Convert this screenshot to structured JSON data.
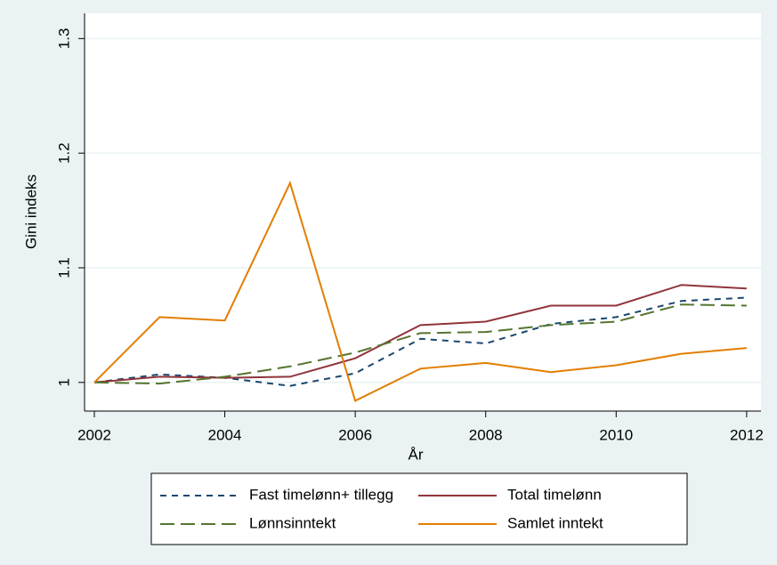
{
  "chart_data": {
    "type": "line",
    "x_label": "År",
    "y_label": "Gini indeks",
    "x": [
      2002,
      2003,
      2004,
      2005,
      2006,
      2007,
      2008,
      2009,
      2010,
      2011,
      2012
    ],
    "series": [
      {
        "name": "Fast timelønn+ tillegg",
        "color": "#1a476f",
        "line_style": "dashed",
        "values": [
          1.0,
          1.007,
          1.004,
          0.997,
          1.008,
          1.038,
          1.034,
          1.051,
          1.057,
          1.071,
          1.074
        ]
      },
      {
        "name": "Total timelønn",
        "color": "#90353b",
        "line_style": "solid",
        "values": [
          1.0,
          1.005,
          1.004,
          1.005,
          1.021,
          1.05,
          1.053,
          1.067,
          1.067,
          1.085,
          1.082
        ]
      },
      {
        "name": "Lønnsinntekt",
        "color": "#55752f",
        "line_style": "longdash",
        "values": [
          1.0,
          0.999,
          1.005,
          1.014,
          1.026,
          1.043,
          1.044,
          1.05,
          1.053,
          1.068,
          1.067
        ]
      },
      {
        "name": "Samlet inntekt",
        "color": "#e37e00",
        "line_style": "solid",
        "values": [
          1.0,
          1.057,
          1.054,
          1.174,
          0.984,
          1.012,
          1.017,
          1.009,
          1.015,
          1.025,
          1.03
        ]
      }
    ],
    "xlim": [
      2001.85,
      2012.22
    ],
    "xticks": [
      2002,
      2004,
      2006,
      2008,
      2010,
      2012
    ],
    "ylim": [
      0.975,
      1.322
    ],
    "yticks": [
      1,
      1.1,
      1.2,
      1.3
    ],
    "grid": true,
    "legend_position": "bottom"
  }
}
